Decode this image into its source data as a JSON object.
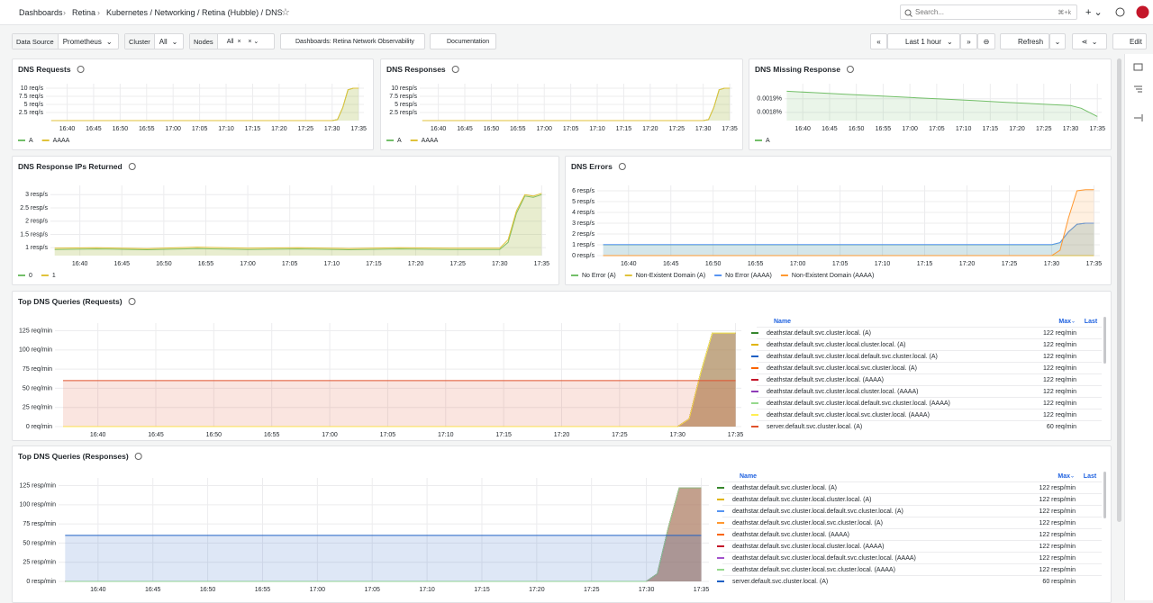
{
  "header": {
    "breadcrumbs": [
      "Dashboards",
      "Retina",
      "Kubernetes / Networking / Retina (Hubble) / DNS"
    ],
    "search": "Search...",
    "shortcut": "⌘+k"
  },
  "toolbar": {
    "variables": [
      {
        "label": "Data Source",
        "value": "Prometheus"
      },
      {
        "label": "Cluster",
        "value": "All"
      },
      {
        "label": "Nodes",
        "value": "All"
      }
    ],
    "links": [
      "Dashboards: Retina Network Observability",
      "Documentation"
    ],
    "time_range": "Last 1 hour",
    "refresh": "Refresh",
    "edit": "Edit"
  },
  "time_axis": {
    "x": [
      37,
      42,
      48,
      54,
      60,
      66,
      72,
      78,
      84,
      90,
      91,
      92,
      93,
      94,
      95
    ],
    "ticks": [
      {
        "value": 40,
        "label": "16:40"
      },
      {
        "value": 45,
        "label": "16:45"
      },
      {
        "value": 50,
        "label": "16:50"
      },
      {
        "value": 55,
        "label": "16:55"
      },
      {
        "value": 60,
        "label": "17:00"
      },
      {
        "value": 65,
        "label": "17:05"
      },
      {
        "value": 70,
        "label": "17:10"
      },
      {
        "value": 75,
        "label": "17:15"
      },
      {
        "value": 80,
        "label": "17:20"
      },
      {
        "value": 85,
        "label": "17:25"
      },
      {
        "value": 90,
        "label": "17:30"
      },
      {
        "value": 95,
        "label": "17:35"
      }
    ]
  },
  "panels": [
    {
      "title": "DNS Requests",
      "legend": "bottom",
      "chart": {
        "type": "area",
        "xlim": [
          36,
          96
        ],
        "ylim": [
          0,
          11.4
        ],
        "yticks": [
          {
            "value": 2.5,
            "label": "2.5 req/s"
          },
          {
            "value": 5,
            "label": "5 req/s"
          },
          {
            "value": 7.5,
            "label": "7.5 req/s"
          },
          {
            "value": 10,
            "label": "10 req/s"
          }
        ],
        "series": [
          {
            "name": "A",
            "color": "#73bf69",
            "values": [
              0,
              0,
              0,
              0,
              0,
              0,
              0,
              0,
              0,
              0,
              0.3,
              4,
              9.5,
              10,
              10
            ]
          },
          {
            "name": "AAAA",
            "color": "#e0c23a",
            "values": [
              0,
              0,
              0,
              0,
              0,
              0,
              0,
              0,
              0,
              0,
              0.3,
              4,
              9.5,
              10,
              10
            ]
          }
        ]
      }
    },
    {
      "title": "DNS Responses",
      "legend": "bottom",
      "chart": {
        "type": "area",
        "xlim": [
          36.5,
          95.5
        ],
        "ylim": [
          0,
          11.4
        ],
        "yticks": [
          {
            "value": 2.5,
            "label": "2.5 resp/s"
          },
          {
            "value": 5,
            "label": "5 resp/s"
          },
          {
            "value": 7.5,
            "label": "7.5 resp/s"
          },
          {
            "value": 10,
            "label": "10 resp/s"
          }
        ],
        "series": [
          {
            "name": "A",
            "color": "#73bf69",
            "values": [
              0,
              0,
              0,
              0,
              0,
              0,
              0,
              0,
              0,
              0,
              0.3,
              4,
              9.5,
              10,
              10
            ]
          },
          {
            "name": "AAAA",
            "color": "#e0c23a",
            "values": [
              0,
              0,
              0,
              0,
              0,
              0,
              0,
              0,
              0,
              0,
              0.3,
              4,
              9.5,
              10,
              10
            ]
          }
        ]
      }
    },
    {
      "title": "DNS Missing Response",
      "legend": "bottom",
      "chart": {
        "type": "area",
        "xlim": [
          36.6,
          95.8
        ],
        "ylim": [
          0.00174,
          0.00201
        ],
        "yticks": [
          {
            "value": 0.0018,
            "label": "0.0018%"
          },
          {
            "value": 0.0019,
            "label": "0.0019%"
          }
        ],
        "series": [
          {
            "name": "A",
            "color": "#73bf69",
            "values": [
              0.001955,
              0.001945,
              0.001933,
              0.001921,
              0.001909,
              0.001898,
              0.001886,
              0.001874,
              0.001862,
              0.00185,
              0.00184,
              0.00183,
              0.00181,
              0.00179,
              0.00177
            ]
          }
        ]
      }
    },
    {
      "title": "DNS Response IPs Returned",
      "legend": "bottom",
      "chart": {
        "type": "area",
        "xlim": [
          36.5,
          95.5
        ],
        "ylim": [
          0.7,
          3.35
        ],
        "yticks": [
          {
            "value": 1,
            "label": "1 resp/s"
          },
          {
            "value": 1.5,
            "label": "1.5 resp/s"
          },
          {
            "value": 2,
            "label": "2 resp/s"
          },
          {
            "value": 2.5,
            "label": "2.5 resp/s"
          },
          {
            "value": 3,
            "label": "3 resp/s"
          }
        ],
        "series": [
          {
            "name": "0",
            "color": "#73bf69",
            "values": [
              0.93,
              0.95,
              0.92,
              0.96,
              0.93,
              0.95,
              0.92,
              0.95,
              0.93,
              0.93,
              1.2,
              2.3,
              2.95,
              2.9,
              3
            ]
          },
          {
            "name": "1",
            "color": "#e0c23a",
            "values": [
              0.98,
              1,
              0.96,
              1.02,
              0.98,
              1,
              0.97,
              1,
              0.98,
              0.98,
              1.3,
              2.4,
              3,
              2.95,
              3.05
            ]
          }
        ]
      }
    },
    {
      "title": "DNS Errors",
      "legend": "bottom",
      "chart": {
        "type": "area",
        "xlim": [
          36.3,
          95.7
        ],
        "ylim": [
          0,
          6.5
        ],
        "yticks": [
          {
            "value": 0,
            "label": "0 resp/s"
          },
          {
            "value": 1,
            "label": "1 resp/s"
          },
          {
            "value": 2,
            "label": "2 resp/s"
          },
          {
            "value": 3,
            "label": "3 resp/s"
          },
          {
            "value": 4,
            "label": "4 resp/s"
          },
          {
            "value": 5,
            "label": "5 resp/s"
          },
          {
            "value": 6,
            "label": "6 resp/s"
          }
        ],
        "series": [
          {
            "name": "No Error (A)",
            "color": "#73bf69",
            "values": [
              1,
              1,
              1,
              1,
              1,
              1,
              1,
              1,
              1,
              1,
              1.2,
              2.2,
              2.9,
              3,
              3
            ]
          },
          {
            "name": "Non-Existent Domain (A)",
            "color": "#e0c23a",
            "values": [
              0,
              0,
              0,
              0,
              0,
              0,
              0,
              0,
              0,
              0,
              0,
              0,
              0,
              0,
              0
            ]
          },
          {
            "name": "No Error (AAAA)",
            "color": "#5794f2",
            "values": [
              1.02,
              1.02,
              1.02,
              1.02,
              1.02,
              1.02,
              1.02,
              1.02,
              1.02,
              1.02,
              1.2,
              2.2,
              2.9,
              3,
              3
            ]
          },
          {
            "name": "Non-Existent Domain (AAAA)",
            "color": "#ff9830",
            "values": [
              0,
              0,
              0,
              0,
              0,
              0,
              0,
              0,
              0,
              0,
              0.5,
              3.5,
              6,
              6.1,
              6.1
            ]
          }
        ]
      }
    },
    {
      "title": "Top DNS Queries (Requests)",
      "legend": "table",
      "columns": [
        "Name",
        "Max",
        "Last"
      ],
      "chart": {
        "type": "area",
        "xlim": [
          36.3,
          95.5
        ],
        "ylim": [
          0,
          135
        ],
        "yticks": [
          {
            "value": 0,
            "label": "0 req/min"
          },
          {
            "value": 25,
            "label": "25 req/min"
          },
          {
            "value": 50,
            "label": "50 req/min"
          },
          {
            "value": 75,
            "label": "75 req/min"
          },
          {
            "value": 100,
            "label": "100 req/min"
          },
          {
            "value": 125,
            "label": "125 req/min"
          }
        ],
        "series": [
          {
            "name": "deathstar.default.svc.cluster.local. (A)",
            "color": "#37872d",
            "max": "122 req/min",
            "values": [
              0,
              0,
              0,
              0,
              0,
              0,
              0,
              0,
              0,
              0,
              10,
              70,
              122,
              122,
              122
            ]
          },
          {
            "name": "deathstar.default.svc.cluster.local.cluster.local. (A)",
            "color": "#e0b400",
            "max": "122 req/min",
            "values": [
              0,
              0,
              0,
              0,
              0,
              0,
              0,
              0,
              0,
              0,
              10,
              70,
              122,
              122,
              122
            ]
          },
          {
            "name": "deathstar.default.svc.cluster.local.default.svc.cluster.local. (A)",
            "color": "#1f60c4",
            "max": "122 req/min",
            "values": [
              0,
              0,
              0,
              0,
              0,
              0,
              0,
              0,
              0,
              0,
              10,
              70,
              122,
              122,
              122
            ]
          },
          {
            "name": "deathstar.default.svc.cluster.local.svc.cluster.local. (A)",
            "color": "#fa6400",
            "max": "122 req/min",
            "values": [
              0,
              0,
              0,
              0,
              0,
              0,
              0,
              0,
              0,
              0,
              10,
              70,
              122,
              122,
              122
            ]
          },
          {
            "name": "deathstar.default.svc.cluster.local. (AAAA)",
            "color": "#c4162a",
            "max": "122 req/min",
            "values": [
              0,
              0,
              0,
              0,
              0,
              0,
              0,
              0,
              0,
              0,
              10,
              70,
              122,
              122,
              122
            ]
          },
          {
            "name": "deathstar.default.svc.cluster.local.cluster.local. (AAAA)",
            "color": "#8f3bb8",
            "max": "122 req/min",
            "values": [
              0,
              0,
              0,
              0,
              0,
              0,
              0,
              0,
              0,
              0,
              10,
              70,
              122,
              122,
              122
            ]
          },
          {
            "name": "deathstar.default.svc.cluster.local.default.svc.cluster.local. (AAAA)",
            "color": "#96d98d",
            "max": "122 req/min",
            "values": [
              0,
              0,
              0,
              0,
              0,
              0,
              0,
              0,
              0,
              0,
              10,
              70,
              122,
              122,
              122
            ]
          },
          {
            "name": "deathstar.default.svc.cluster.local.svc.cluster.local. (AAAA)",
            "color": "#ffee52",
            "max": "122 req/min",
            "values": [
              0,
              0,
              0,
              0,
              0,
              0,
              0,
              0,
              0,
              0,
              10,
              70,
              122,
              122,
              122
            ]
          },
          {
            "name": "server.default.svc.cluster.local. (A)",
            "color": "#e0522c",
            "max": "60 req/min",
            "values": [
              60,
              60,
              60,
              60,
              60,
              60,
              60,
              60,
              60,
              60,
              60,
              60,
              60,
              60,
              60
            ]
          }
        ]
      }
    },
    {
      "title": "Top DNS Queries (Responses)",
      "legend": "table",
      "columns": [
        "Name",
        "Max",
        "Last"
      ],
      "chart": {
        "type": "area",
        "xlim": [
          36.4,
          95.7
        ],
        "ylim": [
          0,
          135
        ],
        "yticks": [
          {
            "value": 0,
            "label": "0 resp/min"
          },
          {
            "value": 25,
            "label": "25 resp/min"
          },
          {
            "value": 50,
            "label": "50 resp/min"
          },
          {
            "value": 75,
            "label": "75 resp/min"
          },
          {
            "value": 100,
            "label": "100 resp/min"
          },
          {
            "value": 125,
            "label": "125 resp/min"
          }
        ],
        "series": [
          {
            "name": "deathstar.default.svc.cluster.local. (A)",
            "color": "#37872d",
            "max": "122 resp/min",
            "values": [
              0,
              0,
              0,
              0,
              0,
              0,
              0,
              0,
              0,
              0,
              10,
              70,
              122,
              122,
              122
            ]
          },
          {
            "name": "deathstar.default.svc.cluster.local.cluster.local. (A)",
            "color": "#e0b400",
            "max": "122 resp/min",
            "values": [
              0,
              0,
              0,
              0,
              0,
              0,
              0,
              0,
              0,
              0,
              10,
              70,
              122,
              122,
              122
            ]
          },
          {
            "name": "deathstar.default.svc.cluster.local.default.svc.cluster.local. (A)",
            "color": "#5794f2",
            "max": "122 resp/min",
            "values": [
              0,
              0,
              0,
              0,
              0,
              0,
              0,
              0,
              0,
              0,
              10,
              70,
              122,
              122,
              122
            ]
          },
          {
            "name": "deathstar.default.svc.cluster.local.svc.cluster.local. (A)",
            "color": "#ff9830",
            "max": "122 resp/min",
            "values": [
              0,
              0,
              0,
              0,
              0,
              0,
              0,
              0,
              0,
              0,
              10,
              70,
              122,
              122,
              122
            ]
          },
          {
            "name": "deathstar.default.svc.cluster.local. (AAAA)",
            "color": "#fa6400",
            "max": "122 resp/min",
            "values": [
              0,
              0,
              0,
              0,
              0,
              0,
              0,
              0,
              0,
              0,
              10,
              70,
              122,
              122,
              122
            ]
          },
          {
            "name": "deathstar.default.svc.cluster.local.cluster.local. (AAAA)",
            "color": "#c4162a",
            "max": "122 resp/min",
            "values": [
              0,
              0,
              0,
              0,
              0,
              0,
              0,
              0,
              0,
              0,
              10,
              70,
              122,
              122,
              122
            ]
          },
          {
            "name": "deathstar.default.svc.cluster.local.default.svc.cluster.local. (AAAA)",
            "color": "#a352cc",
            "max": "122 resp/min",
            "values": [
              0,
              0,
              0,
              0,
              0,
              0,
              0,
              0,
              0,
              0,
              10,
              70,
              122,
              122,
              122
            ]
          },
          {
            "name": "deathstar.default.svc.cluster.local.svc.cluster.local. (AAAA)",
            "color": "#96d98d",
            "max": "122 resp/min",
            "values": [
              0,
              0,
              0,
              0,
              0,
              0,
              0,
              0,
              0,
              0,
              10,
              70,
              122,
              122,
              122
            ]
          },
          {
            "name": "server.default.svc.cluster.local. (A)",
            "color": "#1f60c4",
            "max": "60 resp/min",
            "values": [
              60,
              60,
              60,
              60,
              60,
              60,
              60,
              60,
              60,
              60,
              60,
              60,
              60,
              60,
              60
            ]
          }
        ]
      }
    }
  ]
}
